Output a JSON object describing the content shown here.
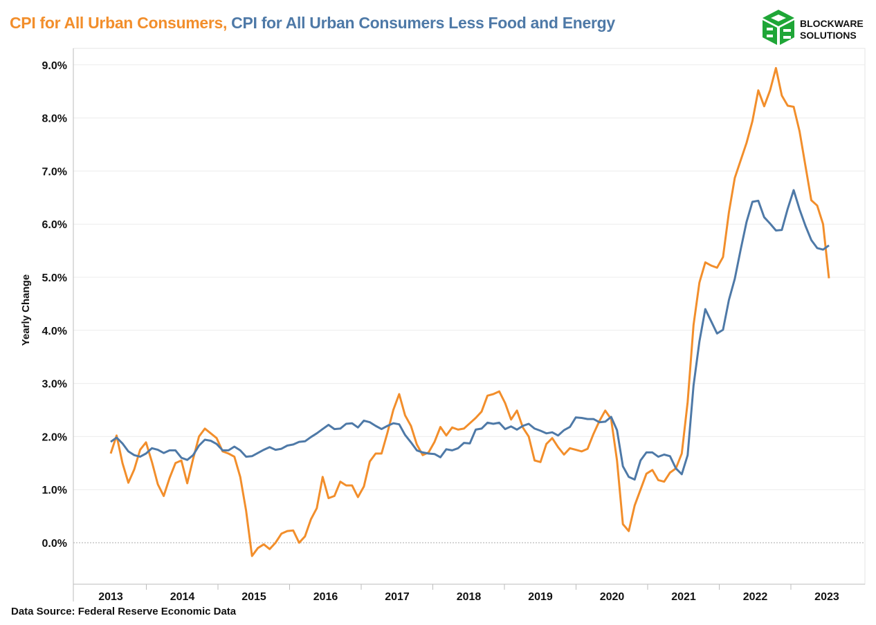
{
  "title": {
    "part1": "CPI for All Urban Consumers,",
    "part2": "CPI for All Urban Consumers Less Food and Energy"
  },
  "source": "Data Source: Federal Reserve Economic Data",
  "logo": {
    "line1": "BLOCKWARE",
    "line2": "SOLUTIONS",
    "color": "#1FA637"
  },
  "chart_data": {
    "type": "line",
    "title": "CPI for All Urban Consumers, CPI for All Urban Consumers Less Food and Energy",
    "xlabel": "",
    "ylabel": "Yearly Change",
    "start": "2013-01",
    "frequency": "monthly",
    "ylim": [
      -0.8,
      9.2
    ],
    "yticks": [
      "0.0%",
      "1.0%",
      "2.0%",
      "3.0%",
      "4.0%",
      "5.0%",
      "6.0%",
      "7.0%",
      "8.0%",
      "9.0%"
    ],
    "xticks": [
      "2013",
      "2014",
      "2015",
      "2016",
      "2017",
      "2018",
      "2019",
      "2020",
      "2021",
      "2022",
      "2023"
    ],
    "grid": true,
    "series": [
      {
        "name": "CPI for All Urban Consumers",
        "color": "#F28E2B",
        "values": [
          1.68,
          2.02,
          1.5,
          1.13,
          1.38,
          1.75,
          1.89,
          1.52,
          1.1,
          0.88,
          1.22,
          1.5,
          1.55,
          1.12,
          1.58,
          2.0,
          2.15,
          2.06,
          1.97,
          1.72,
          1.68,
          1.62,
          1.24,
          0.6,
          -0.25,
          -0.1,
          -0.03,
          -0.12,
          0.0,
          0.17,
          0.22,
          0.23,
          0.0,
          0.12,
          0.44,
          0.65,
          1.24,
          0.84,
          0.88,
          1.15,
          1.08,
          1.08,
          0.86,
          1.06,
          1.53,
          1.68,
          1.68,
          2.07,
          2.5,
          2.8,
          2.4,
          2.2,
          1.85,
          1.65,
          1.7,
          1.9,
          2.18,
          2.02,
          2.17,
          2.13,
          2.15,
          2.25,
          2.35,
          2.47,
          2.77,
          2.8,
          2.85,
          2.63,
          2.32,
          2.49,
          2.17,
          2.0,
          1.55,
          1.52,
          1.86,
          1.97,
          1.8,
          1.66,
          1.78,
          1.75,
          1.72,
          1.77,
          2.05,
          2.29,
          2.49,
          2.33,
          1.55,
          0.35,
          0.22,
          0.7,
          1.0,
          1.3,
          1.37,
          1.18,
          1.15,
          1.32,
          1.4,
          1.68,
          2.65,
          4.1,
          4.9,
          5.28,
          5.22,
          5.18,
          5.38,
          6.22,
          6.87,
          7.2,
          7.53,
          7.94,
          8.52,
          8.22,
          8.52,
          8.94,
          8.42,
          8.23,
          8.21,
          7.75,
          7.1,
          6.45,
          6.35,
          6.0,
          4.98
        ]
      },
      {
        "name": "CPI for All Urban Consumers Less Food and Energy",
        "color": "#4E79A7",
        "values": [
          1.9,
          1.98,
          1.87,
          1.72,
          1.65,
          1.62,
          1.68,
          1.78,
          1.75,
          1.69,
          1.74,
          1.74,
          1.6,
          1.56,
          1.65,
          1.83,
          1.94,
          1.92,
          1.86,
          1.74,
          1.74,
          1.81,
          1.74,
          1.62,
          1.63,
          1.69,
          1.75,
          1.8,
          1.75,
          1.77,
          1.83,
          1.85,
          1.9,
          1.91,
          1.99,
          2.06,
          2.14,
          2.22,
          2.14,
          2.15,
          2.24,
          2.25,
          2.17,
          2.3,
          2.27,
          2.2,
          2.14,
          2.2,
          2.25,
          2.23,
          2.03,
          1.89,
          1.74,
          1.7,
          1.68,
          1.67,
          1.61,
          1.76,
          1.74,
          1.78,
          1.88,
          1.87,
          2.13,
          2.15,
          2.26,
          2.24,
          2.26,
          2.14,
          2.19,
          2.13,
          2.2,
          2.24,
          2.15,
          2.11,
          2.06,
          2.08,
          2.02,
          2.12,
          2.18,
          2.36,
          2.35,
          2.33,
          2.33,
          2.27,
          2.28,
          2.37,
          2.12,
          1.44,
          1.24,
          1.19,
          1.55,
          1.7,
          1.7,
          1.62,
          1.66,
          1.63,
          1.4,
          1.29,
          1.65,
          2.96,
          3.79,
          4.4,
          4.17,
          3.94,
          4.01,
          4.57,
          4.97,
          5.52,
          6.04,
          6.42,
          6.44,
          6.13,
          6.01,
          5.88,
          5.89,
          6.29,
          6.64,
          6.28,
          5.97,
          5.7,
          5.55,
          5.52,
          5.6
        ]
      }
    ]
  }
}
